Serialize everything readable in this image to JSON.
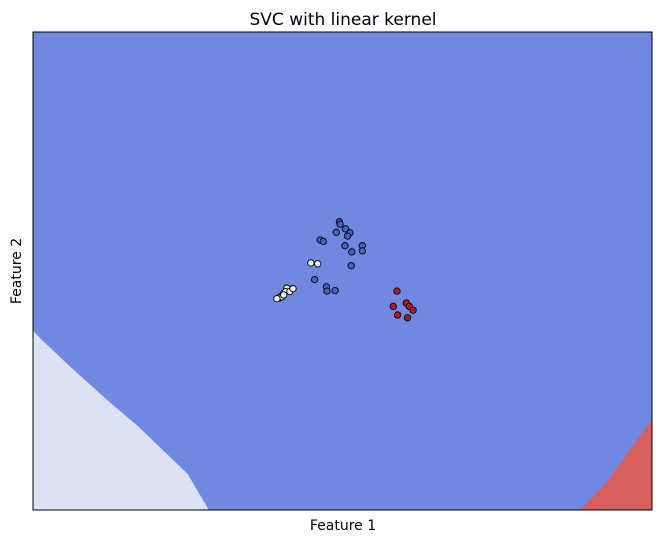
{
  "chart_data": {
    "type": "scatter",
    "title": "SVC with linear kernel",
    "xlabel": "Feature 1",
    "ylabel": "Feature 2",
    "xlim": [
      0,
      100
    ],
    "ylim": [
      0,
      100
    ],
    "xticks": [],
    "yticks": [],
    "grid": false,
    "colors": {
      "class_0": "#dbe3f2",
      "class_1": "#7088e0",
      "class_2": "#d75f5c",
      "point_0": "#f0f0e6",
      "point_1": "#4a5fc8",
      "point_2": "#b2182b",
      "edge": "#000000"
    },
    "regions": [
      {
        "class": "class_0",
        "polygon": [
          [
            0,
            37.5
          ],
          [
            1.5,
            35.5
          ],
          [
            6,
            30
          ],
          [
            12,
            23
          ],
          [
            17,
            17.5
          ],
          [
            21,
            12.5
          ],
          [
            25,
            7.5
          ],
          [
            28.4,
            0
          ],
          [
            0,
            0
          ]
        ]
      },
      {
        "class": "class_2",
        "polygon": [
          [
            100,
            18.8
          ],
          [
            97.5,
            14.5
          ],
          [
            95,
            10
          ],
          [
            92.5,
            5.5
          ],
          [
            88.4,
            0
          ],
          [
            100,
            0
          ]
        ]
      }
    ],
    "series": [
      {
        "class": "point_0",
        "points": [
          [
            39.8,
            44.4
          ],
          [
            41.3,
            46.0
          ],
          [
            40.5,
            45.3
          ],
          [
            41.0,
            46.4
          ],
          [
            40.0,
            44.6
          ],
          [
            40.2,
            44.6
          ],
          [
            40.8,
            45.7
          ],
          [
            39.4,
            44.2
          ],
          [
            40.5,
            45.0
          ],
          [
            46.0,
            51.5
          ],
          [
            44.9,
            51.7
          ],
          [
            41.5,
            45.7
          ],
          [
            42.0,
            46.3
          ]
        ]
      },
      {
        "class": "point_1",
        "points": [
          [
            49.5,
            60.3
          ],
          [
            49.6,
            59.8
          ],
          [
            50.5,
            58.8
          ],
          [
            51.2,
            58.0
          ],
          [
            49.0,
            58.1
          ],
          [
            50.8,
            57.3
          ],
          [
            46.4,
            56.5
          ],
          [
            46.9,
            56.2
          ],
          [
            50.4,
            55.3
          ],
          [
            53.2,
            55.3
          ],
          [
            53.2,
            54.2
          ],
          [
            51.5,
            54.0
          ],
          [
            51.4,
            51.1
          ],
          [
            45.5,
            48.2
          ],
          [
            47.4,
            46.7
          ],
          [
            48.8,
            45.9
          ],
          [
            47.5,
            45.8
          ]
        ]
      },
      {
        "class": "point_2",
        "points": [
          [
            58.8,
            45.8
          ],
          [
            60.3,
            43.3
          ],
          [
            58.2,
            42.6
          ],
          [
            60.8,
            42.6
          ],
          [
            61.4,
            41.8
          ],
          [
            58.9,
            40.8
          ],
          [
            60.5,
            40.2
          ]
        ]
      }
    ]
  }
}
